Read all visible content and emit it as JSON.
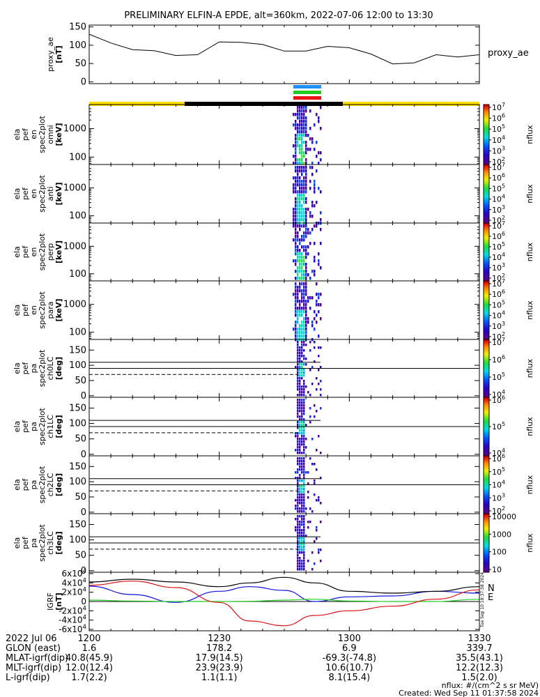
{
  "title": "PRELIMINARY ELFIN-A EPDE, alt=360km, 2022-07-06 12:00 to 13:30",
  "created": "Created: Wed Sep 11 01:37:58 2024",
  "units_note": "nflux: #/(cm^2 s sr MeV)",
  "side_stamp": "Tue Sep 10 18:37:58 2024",
  "bar_colors": {
    "blue": "#1e90ff",
    "green": "#22cc22",
    "red": "#ee1111",
    "yellow": "#ffdd00",
    "black": "#000000"
  },
  "chart_data": [
    {
      "name": "proxy_ae",
      "type": "line",
      "ylabel_lines": [
        "proxy_ae",
        "[nT]"
      ],
      "legend": "proxy_ae",
      "yticks": [
        "0",
        "50",
        "100",
        "150"
      ],
      "ylim": [
        -5,
        155
      ],
      "x_minutes": [
        0,
        5,
        10,
        15,
        20,
        25,
        30,
        35,
        40,
        45,
        50,
        55,
        60,
        65,
        70,
        75,
        80,
        85,
        90
      ],
      "values": [
        130,
        106,
        88,
        85,
        72,
        74,
        109,
        108,
        102,
        84,
        84,
        97,
        93,
        76,
        49,
        52,
        74,
        68,
        74
      ]
    },
    {
      "name": "en-omni",
      "type": "spectrogram",
      "ylabel_lines": [
        "ela",
        "pef",
        "en",
        "spec2plot",
        "omni",
        "[keV]"
      ],
      "yticks": [
        "100",
        "1000"
      ],
      "zlabel": "nflux",
      "zticks": [
        "10^2",
        "10^3",
        "10^4",
        "10^5",
        "10^6",
        "10^7"
      ]
    },
    {
      "name": "en-anti",
      "type": "spectrogram",
      "ylabel_lines": [
        "ela",
        "pef",
        "en",
        "spec2plot",
        "anti",
        "[keV]"
      ],
      "yticks": [
        "100",
        "1000"
      ],
      "zlabel": "nflux",
      "zticks": [
        "10^2",
        "10^3",
        "10^4",
        "10^5",
        "10^6",
        "10^7"
      ]
    },
    {
      "name": "en-perp",
      "type": "spectrogram",
      "ylabel_lines": [
        "ela",
        "pef",
        "en",
        "spec2plot",
        "perp",
        "[keV]"
      ],
      "yticks": [
        "100",
        "1000"
      ],
      "zlabel": "nflux",
      "zticks": [
        "10^2",
        "10^3",
        "10^4",
        "10^5",
        "10^6",
        "10^7"
      ]
    },
    {
      "name": "en-para",
      "type": "spectrogram",
      "ylabel_lines": [
        "ela",
        "pef",
        "en",
        "spec2plot",
        "para",
        "[keV]"
      ],
      "yticks": [
        "100",
        "1000"
      ],
      "zlabel": "nflux",
      "zticks": [
        "10^2",
        "10^3",
        "10^4",
        "10^5",
        "10^6",
        "10^7"
      ]
    },
    {
      "name": "pa-ch0LC",
      "type": "spectrogram",
      "ylabel_lines": [
        "ela",
        "pef",
        "pa",
        "spec2plot",
        "ch0LC",
        "[deg]"
      ],
      "yticks": [
        "0",
        "50",
        "100",
        "150"
      ],
      "zlabel": "nflux",
      "zticks": [
        "10^4",
        "10^5",
        "10^6",
        "10^7"
      ]
    },
    {
      "name": "pa-ch1LC",
      "type": "spectrogram",
      "ylabel_lines": [
        "ela",
        "pef",
        "pa",
        "spec2plot",
        "ch1LC",
        "[deg]"
      ],
      "yticks": [
        "0",
        "50",
        "100",
        "150"
      ],
      "zlabel": "nflux",
      "zticks": [
        "10^4",
        "10^5",
        "10^6"
      ]
    },
    {
      "name": "pa-ch2LC",
      "type": "spectrogram",
      "ylabel_lines": [
        "ela",
        "pef",
        "pa",
        "spec2plot",
        "ch2LC",
        "[deg]"
      ],
      "yticks": [
        "0",
        "50",
        "100",
        "150"
      ],
      "zlabel": "nflux",
      "zticks": [
        "10^2",
        "10^3",
        "10^4",
        "10^5",
        "10^6"
      ]
    },
    {
      "name": "pa-ch3LC",
      "type": "spectrogram",
      "ylabel_lines": [
        "ela",
        "pef",
        "pa",
        "spec2plot",
        "ch3LC",
        "[deg]"
      ],
      "yticks": [
        "0",
        "50",
        "100",
        "150"
      ],
      "zlabel": "nflux",
      "zticks": [
        "10",
        "100",
        "1000",
        "10000"
      ]
    },
    {
      "name": "igrf",
      "type": "line",
      "ylabel_lines": [
        "IGRF",
        "[nT]"
      ],
      "yticks": [
        "-6x10^4",
        "-4x10^4",
        "-2x10^4",
        "0",
        "2x10^4",
        "4x10^4",
        "6x10^4"
      ],
      "ylim": [
        -60000,
        60000
      ],
      "x_minutes": [
        0,
        10,
        20,
        30,
        37,
        45,
        52,
        60,
        70,
        80,
        90
      ],
      "series": [
        {
          "name": "N",
          "color": "#1010dd",
          "values": [
            33000,
            15000,
            -2000,
            22000,
            32000,
            24000,
            0,
            10000,
            12000,
            22000,
            18000
          ]
        },
        {
          "name": "E",
          "color": "#22cc22",
          "values": [
            3000,
            1000,
            0,
            0,
            500,
            3000,
            5000,
            1000,
            0,
            0,
            5000
          ]
        },
        {
          "name": "",
          "color": "#dd1010",
          "values": [
            35000,
            44000,
            30000,
            -2000,
            -42000,
            -52000,
            -30000,
            -20000,
            -10000,
            5000,
            25000
          ]
        },
        {
          "name": "",
          "color": "#000000",
          "values": [
            42000,
            48000,
            42000,
            32000,
            40000,
            52000,
            40000,
            22000,
            18000,
            22000,
            32000
          ]
        }
      ]
    }
  ],
  "x_axis": {
    "ticks": [
      "1200",
      "1230",
      "1300",
      "1330"
    ],
    "date_label": "2022 Jul 06",
    "rows": [
      {
        "label": "GLON (east)",
        "values": [
          "1.6",
          "178.2",
          "6.9",
          "339.7"
        ]
      },
      {
        "label": "MLAT-igrf(dip)",
        "values": [
          "40.8(45.9)",
          "17.9(14.5)",
          "-69.3(-74.8)",
          "35.5(43.1)"
        ]
      },
      {
        "label": "MLT-igrf(dip)",
        "values": [
          "12.0(12.4)",
          "23.9(23.9)",
          "10.6(10.7)",
          "12.2(12.3)"
        ]
      },
      {
        "label": "L-igrf(dip)",
        "values": [
          "1.7(2.2)",
          "1.1(1.1)",
          "8.1(15.4)",
          "1.5(2.0)"
        ]
      }
    ]
  }
}
